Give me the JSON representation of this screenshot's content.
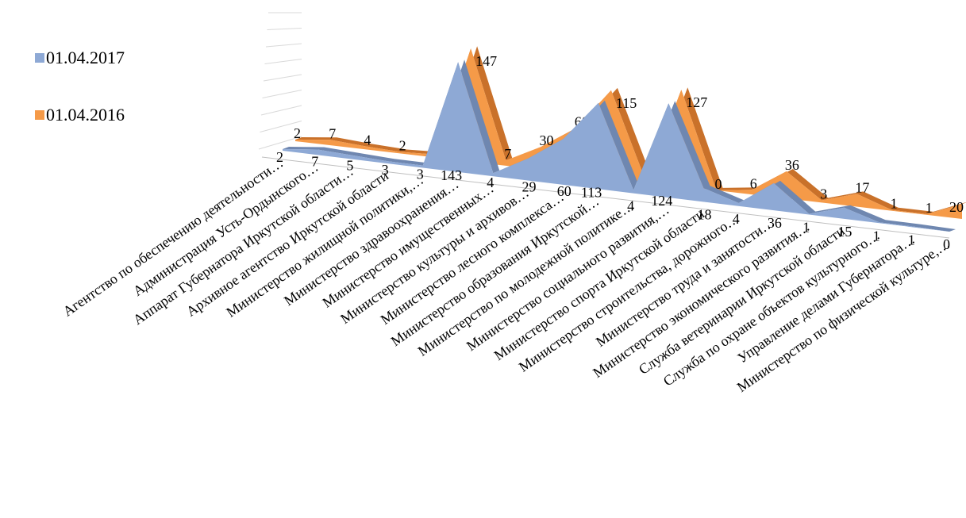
{
  "chart_data": {
    "type": "area",
    "style": "3d",
    "categories": [
      "Агентство по обеспечению деятельности…",
      "Администрация Усть-Ордынского…",
      "Аппарат Губернатора Иркутской области…",
      "Архивное агентство Иркутской области",
      "Министерство жилищной политики,…",
      "Министерство здравоохранения…",
      "Министерство имущественных…",
      "Министерство культуры и архивов…",
      "Министерство лесного комплекса…",
      "Министерство образования Иркутской…",
      "Министерство по молодежной политике…",
      "Министерство социального развития,…",
      "Министерство спорта Иркутской области",
      "Министерство строительства, дорожного…",
      "Министерство труда и занятости…",
      "Министерство экономического развития…",
      "Служба ветеринарии Иркутской области",
      "Служба по охране объектов культурного…",
      "Управление делами Губернатора…",
      "Министерство по физической культуре,…"
    ],
    "series": [
      {
        "name": "01.04.2017",
        "color": "#8EA9D5",
        "values": [
          2,
          7,
          5,
          3,
          3,
          143,
          4,
          29,
          60,
          113,
          4,
          124,
          18,
          4,
          36,
          1,
          15,
          1,
          1,
          0
        ]
      },
      {
        "name": "01.04.2016",
        "color": "#F59A48",
        "values": [
          2,
          7,
          4,
          2,
          4,
          147,
          7,
          30,
          60,
          115,
          0,
          127,
          0,
          6,
          36,
          3,
          17,
          1,
          1,
          20
        ]
      }
    ],
    "ylim": [
      0,
      160
    ],
    "grid": true,
    "legend_position": "left"
  }
}
